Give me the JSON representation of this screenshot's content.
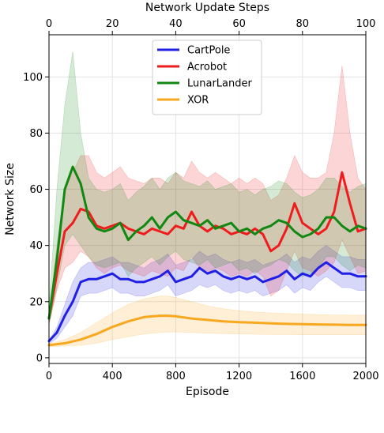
{
  "chart_data": {
    "type": "line",
    "xlabel": "Episode",
    "ylabel": "Network Size",
    "top_xlabel": "Network Update Steps",
    "xlim": [
      0,
      2000
    ],
    "ylim": [
      -2,
      115
    ],
    "top_xlim": [
      0,
      100
    ],
    "x_ticks": [
      0,
      400,
      800,
      1200,
      1600,
      2000
    ],
    "y_ticks": [
      0,
      20,
      40,
      60,
      80,
      100
    ],
    "top_x_ticks": [
      0,
      20,
      40,
      60,
      80,
      100
    ],
    "grid": true,
    "legend_position": "top-center",
    "series": [
      {
        "name": "CartPole",
        "color": "#1f1fe6",
        "x": [
          0,
          50,
          100,
          150,
          200,
          250,
          300,
          350,
          400,
          450,
          500,
          550,
          600,
          650,
          700,
          750,
          800,
          850,
          900,
          950,
          1000,
          1050,
          1100,
          1150,
          1200,
          1250,
          1300,
          1350,
          1400,
          1450,
          1500,
          1550,
          1600,
          1650,
          1700,
          1750,
          1800,
          1850,
          1900,
          1950,
          2000
        ],
        "y": [
          6,
          9,
          15,
          20,
          27,
          28,
          28,
          29,
          30,
          28,
          28,
          27,
          27,
          28,
          29,
          31,
          27,
          28,
          29,
          32,
          30,
          31,
          29,
          28,
          29,
          28,
          29,
          27,
          28,
          29,
          31,
          28,
          30,
          29,
          32,
          34,
          32,
          30,
          30,
          29,
          29
        ],
        "upper": [
          6,
          11,
          19,
          27,
          32,
          34,
          34,
          35,
          36,
          34,
          34,
          33,
          32,
          34,
          35,
          37,
          33,
          34,
          35,
          38,
          36,
          37,
          35,
          34,
          35,
          34,
          35,
          33,
          34,
          35,
          37,
          34,
          36,
          35,
          38,
          40,
          38,
          36,
          36,
          35,
          35
        ],
        "lower": [
          5,
          7,
          11,
          15,
          22,
          23,
          23,
          24,
          25,
          23,
          23,
          22,
          22,
          23,
          24,
          26,
          22,
          23,
          24,
          26,
          25,
          26,
          24,
          23,
          24,
          23,
          24,
          22,
          23,
          24,
          26,
          23,
          25,
          24,
          27,
          29,
          27,
          25,
          25,
          24,
          24
        ]
      },
      {
        "name": "Acrobot",
        "color": "#ee1c1c",
        "x": [
          0,
          50,
          100,
          150,
          200,
          250,
          300,
          350,
          400,
          450,
          500,
          550,
          600,
          650,
          700,
          750,
          800,
          850,
          900,
          950,
          1000,
          1050,
          1100,
          1150,
          1200,
          1250,
          1300,
          1350,
          1400,
          1450,
          1500,
          1550,
          1600,
          1650,
          1700,
          1750,
          1800,
          1850,
          1900,
          1950,
          2000
        ],
        "y": [
          14,
          30,
          45,
          48,
          53,
          52,
          47,
          46,
          47,
          48,
          46,
          45,
          44,
          46,
          45,
          44,
          47,
          46,
          52,
          47,
          45,
          47,
          46,
          44,
          45,
          44,
          46,
          44,
          38,
          40,
          46,
          55,
          48,
          46,
          44,
          46,
          52,
          66,
          55,
          45,
          46
        ],
        "upper": [
          15,
          40,
          60,
          66,
          72,
          72,
          66,
          64,
          66,
          68,
          64,
          63,
          62,
          64,
          64,
          62,
          66,
          64,
          70,
          66,
          64,
          66,
          64,
          62,
          64,
          62,
          64,
          62,
          56,
          58,
          64,
          72,
          66,
          64,
          64,
          66,
          80,
          104,
          80,
          64,
          60
        ],
        "lower": [
          12,
          24,
          32,
          34,
          38,
          36,
          32,
          30,
          32,
          33,
          31,
          30,
          29,
          31,
          30,
          29,
          32,
          31,
          36,
          32,
          30,
          32,
          31,
          29,
          30,
          29,
          31,
          29,
          22,
          24,
          31,
          38,
          32,
          31,
          29,
          31,
          34,
          42,
          36,
          30,
          31
        ]
      },
      {
        "name": "LunarLander",
        "color": "#118811",
        "x": [
          0,
          50,
          100,
          150,
          200,
          250,
          300,
          350,
          400,
          450,
          500,
          550,
          600,
          650,
          700,
          750,
          800,
          850,
          900,
          950,
          1000,
          1050,
          1100,
          1150,
          1200,
          1250,
          1300,
          1350,
          1400,
          1450,
          1500,
          1550,
          1600,
          1650,
          1700,
          1750,
          1800,
          1850,
          1900,
          1950,
          2000
        ],
        "y": [
          14,
          35,
          60,
          68,
          62,
          50,
          46,
          45,
          46,
          48,
          42,
          45,
          47,
          50,
          46,
          50,
          52,
          49,
          48,
          47,
          49,
          46,
          47,
          48,
          45,
          46,
          44,
          46,
          47,
          49,
          48,
          45,
          43,
          44,
          46,
          50,
          50,
          47,
          45,
          47,
          46
        ],
        "upper": [
          18,
          60,
          90,
          109,
          80,
          64,
          60,
          59,
          60,
          62,
          56,
          59,
          61,
          64,
          60,
          64,
          66,
          63,
          62,
          61,
          63,
          60,
          61,
          62,
          59,
          60,
          58,
          60,
          61,
          63,
          62,
          59,
          57,
          58,
          60,
          64,
          64,
          61,
          59,
          61,
          62
        ],
        "lower": [
          12,
          25,
          40,
          44,
          40,
          36,
          33,
          32,
          33,
          34,
          29,
          32,
          34,
          36,
          33,
          36,
          38,
          35,
          34,
          33,
          35,
          32,
          33,
          34,
          31,
          32,
          30,
          32,
          33,
          35,
          34,
          31,
          29,
          30,
          32,
          36,
          36,
          33,
          31,
          33,
          32
        ]
      },
      {
        "name": "XOR",
        "color": "#f8a81e",
        "x": [
          0,
          100,
          200,
          300,
          400,
          500,
          600,
          700,
          750,
          800,
          900,
          1000,
          1100,
          1200,
          1300,
          1400,
          1500,
          1600,
          1700,
          1800,
          1900,
          2000
        ],
        "y": [
          4.5,
          5.2,
          6.5,
          8.5,
          11,
          13,
          14.5,
          15,
          15,
          14.8,
          14,
          13.5,
          13,
          12.7,
          12.5,
          12.3,
          12.1,
          12,
          11.9,
          11.8,
          11.7,
          11.7
        ],
        "upper": [
          5,
          6.5,
          9,
          12.5,
          16,
          19,
          21,
          22,
          22,
          21.5,
          20,
          18.5,
          17.5,
          16.8,
          16.3,
          16,
          15.8,
          15.6,
          15.4,
          15.3,
          15.2,
          15.2
        ],
        "lower": [
          4,
          4.2,
          4.5,
          5.2,
          6.5,
          7.5,
          8.5,
          9,
          9.2,
          9.2,
          9,
          8.8,
          8.6,
          8.5,
          8.4,
          8.3,
          8.3,
          8.2,
          8.2,
          8.2,
          8.2,
          8.2
        ]
      }
    ]
  }
}
